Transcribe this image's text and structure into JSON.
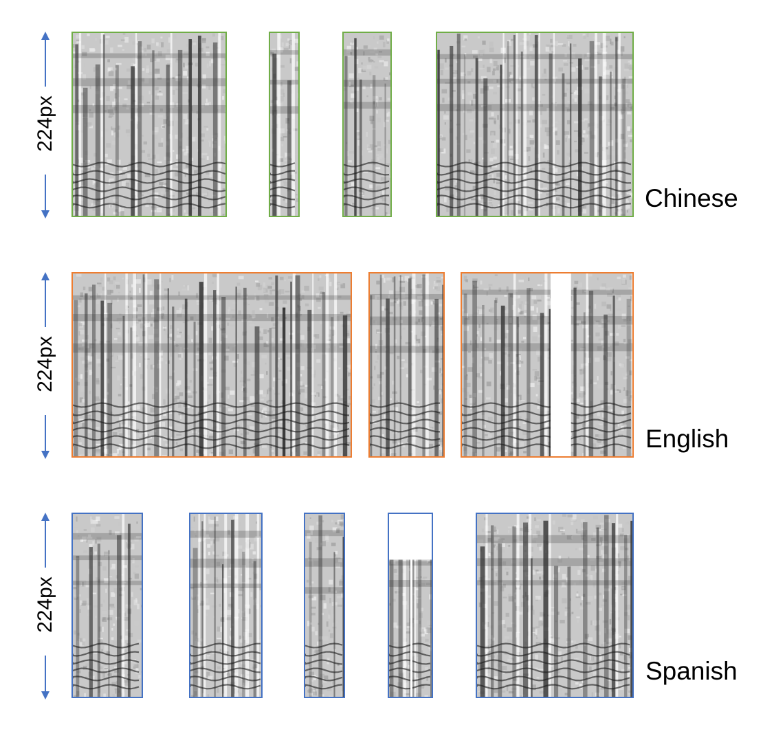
{
  "colors": {
    "arrow": "#4472C4",
    "chinese_border": "#70AD47",
    "english_border": "#ED7D31",
    "spanish_border": "#4472C4"
  },
  "rows": [
    {
      "language": "Chinese",
      "dimension": "224px",
      "spectrogram_count": 4
    },
    {
      "language": "English",
      "dimension": "224px",
      "spectrogram_count": 3
    },
    {
      "language": "Spanish",
      "dimension": "224px",
      "spectrogram_count": 5
    }
  ]
}
